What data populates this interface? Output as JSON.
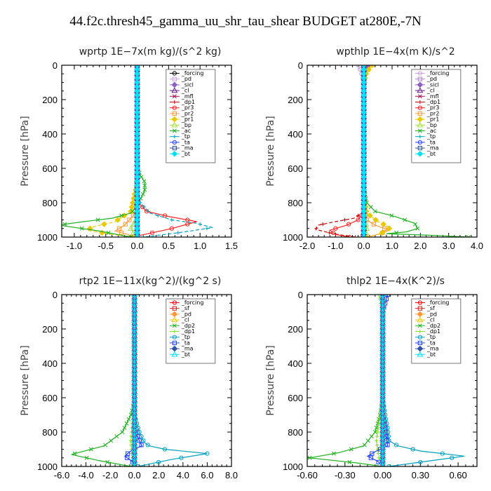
{
  "title": "44.f2c.thresh45_gamma_uu_shr_tau_shear  BUDGET at280E,-7N",
  "chart_data": [
    {
      "type": "line",
      "title": "wprtp   1E−7x(m kg)/(s^2 kg)",
      "ylabel": "Pressure [hPa]",
      "xlim": [
        -1.2,
        1.5
      ],
      "ylim": [
        1000,
        0
      ],
      "xticks": [
        -1.0,
        -0.5,
        0.0,
        0.5,
        1.0,
        1.5
      ],
      "xtick_labels": [
        "-1.0",
        "-0.5",
        "0.0",
        "0.5",
        "1.0",
        "1.5"
      ],
      "yticks": [
        0,
        200,
        400,
        600,
        800,
        1000
      ],
      "ytick_labels": [
        "0",
        "200",
        "400",
        "600",
        "800",
        "1000"
      ],
      "legend_loc": "top-right",
      "series": [
        {
          "name": "_forcing",
          "color": "#000000",
          "x": [
            0,
            0
          ],
          "y": [
            0,
            1000
          ]
        },
        {
          "name": "_pd",
          "color": "#c8a0e0",
          "x": [
            0,
            0
          ],
          "y": [
            0,
            1000
          ]
        },
        {
          "name": "_sicl",
          "color": "#9060c0",
          "x": [
            0,
            0
          ],
          "y": [
            0,
            1000
          ]
        },
        {
          "name": "_cl",
          "color": "#6a1a8a",
          "x": [
            0,
            0
          ],
          "y": [
            0,
            1000
          ]
        },
        {
          "name": "_mfl",
          "color": "#a01050",
          "x": [
            0,
            0
          ],
          "y": [
            0,
            1000
          ]
        },
        {
          "name": "_dp1",
          "color": "#c00000",
          "x": [
            0,
            0
          ],
          "y": [
            0,
            1000
          ]
        },
        {
          "name": "_pr3",
          "color": "#ff2020",
          "x": [
            0,
            0,
            0.02,
            0.15,
            0.5,
            0.95,
            0.55,
            0.05,
            0
          ],
          "y": [
            0,
            750,
            800,
            850,
            880,
            910,
            950,
            990,
            1000
          ]
        },
        {
          "name": "_pr2",
          "color": "#ff9933",
          "x": [
            0,
            0,
            -0.05,
            -0.2,
            -0.35,
            -0.15,
            -0.05
          ],
          "y": [
            0,
            800,
            870,
            930,
            965,
            985,
            1000
          ]
        },
        {
          "name": "_pr1",
          "color": "#e8c800",
          "x": [
            0,
            0,
            -0.01,
            -0.1,
            -0.35,
            -0.7,
            -0.8,
            -0.4,
            -0.05
          ],
          "y": [
            0,
            600,
            700,
            850,
            910,
            940,
            960,
            985,
            1000
          ]
        },
        {
          "name": "_bp",
          "color": "#a0e040",
          "x": [
            0,
            0,
            -0.02,
            -0.1,
            -0.02
          ],
          "y": [
            0,
            800,
            900,
            950,
            1000
          ]
        },
        {
          "name": "_ac",
          "color": "#20b020",
          "x": [
            0,
            0,
            0.05,
            0.12,
            0.12,
            0.05,
            0,
            -0.1,
            -0.4,
            -0.85,
            -1.25,
            -0.6,
            -0.1
          ],
          "y": [
            0,
            580,
            640,
            680,
            730,
            780,
            820,
            860,
            890,
            910,
            930,
            965,
            1000
          ]
        },
        {
          "name": "_tp",
          "color": "#00a0c0",
          "x": [
            0,
            0,
            0.05,
            0.2,
            0.55,
            0.95,
            1.2,
            0.65,
            0.1
          ],
          "y": [
            0,
            720,
            800,
            860,
            900,
            920,
            945,
            975,
            1000
          ]
        },
        {
          "name": "_ta",
          "color": "#2040ff",
          "x": [
            0,
            0
          ],
          "y": [
            0,
            1000
          ]
        },
        {
          "name": "_ma",
          "color": "#3050a0",
          "x": [
            0,
            0
          ],
          "y": [
            0,
            1000
          ]
        },
        {
          "name": "_bt",
          "color": "#00e0ff",
          "x": [
            0,
            0
          ],
          "y": [
            0,
            1000
          ]
        }
      ]
    },
    {
      "type": "line",
      "title": "wpthlp   1E−4x(m K)/s^2",
      "ylabel": "Pressure [hPa]",
      "xlim": [
        -2.0,
        4.0
      ],
      "ylim": [
        1000,
        0
      ],
      "xticks": [
        -2.0,
        -1.0,
        0.0,
        1.0,
        2.0,
        3.0,
        4.0
      ],
      "xtick_labels": [
        "-2.0",
        "-1.0",
        "0.0",
        "1.0",
        "2.0",
        "3.0",
        "4.0"
      ],
      "yticks": [
        0,
        200,
        400,
        600,
        800,
        1000
      ],
      "ytick_labels": [
        "0",
        "200",
        "400",
        "600",
        "800",
        "1000"
      ],
      "legend_loc": "top-right",
      "series": [
        {
          "name": "_forcing",
          "color": "#c8a0e0",
          "x": [
            -0.2,
            -0.1,
            0,
            0
          ],
          "y": [
            0,
            40,
            100,
            1000
          ]
        },
        {
          "name": "_pd",
          "color": "#b080d0",
          "x": [
            0,
            0
          ],
          "y": [
            0,
            1000
          ]
        },
        {
          "name": "_sicl",
          "color": "#9060c0",
          "x": [
            0.15,
            0.05,
            0,
            0
          ],
          "y": [
            0,
            60,
            120,
            1000
          ]
        },
        {
          "name": "_cl",
          "color": "#6a1a8a",
          "x": [
            0,
            0
          ],
          "y": [
            0,
            1000
          ]
        },
        {
          "name": "_mfl",
          "color": "#a01050",
          "x": [
            0,
            0,
            -0.05
          ],
          "y": [
            0,
            900,
            1000
          ]
        },
        {
          "name": "_dp1",
          "color": "#c00000",
          "x": [
            0,
            0,
            -0.05,
            -0.35,
            -1.0,
            -1.6,
            -1.7,
            -1.1,
            -0.3
          ],
          "y": [
            0,
            820,
            860,
            890,
            910,
            930,
            955,
            980,
            1000
          ]
        },
        {
          "name": "_pr3",
          "color": "#ff2020",
          "x": [
            0,
            0,
            -0.2,
            -0.6,
            -1.2,
            -1.0,
            -0.5
          ],
          "y": [
            0,
            850,
            900,
            930,
            960,
            985,
            1000
          ]
        },
        {
          "name": "_pr2",
          "color": "#ff9933",
          "x": [
            0,
            0,
            0.1,
            0.4,
            0.9,
            0.5,
            0.05
          ],
          "y": [
            0,
            850,
            900,
            930,
            960,
            985,
            1000
          ]
        },
        {
          "name": "_pr1",
          "color": "#e8c800",
          "x": [
            0.3,
            0.1,
            0,
            0,
            0.1,
            0.5,
            0.95,
            0.6,
            0.1
          ],
          "y": [
            0,
            40,
            100,
            750,
            860,
            910,
            945,
            980,
            1000
          ]
        },
        {
          "name": "_bp",
          "color": "#a0e040",
          "x": [
            0,
            0,
            0.1,
            0.05
          ],
          "y": [
            0,
            850,
            950,
            1000
          ]
        },
        {
          "name": "_ac",
          "color": "#20b020",
          "x": [
            0,
            0,
            0.1,
            0.4,
            1.1,
            1.8,
            1.9,
            1.5,
            0.8,
            2.5,
            3.7
          ],
          "y": [
            0,
            700,
            800,
            850,
            880,
            920,
            950,
            970,
            980,
            990,
            1000
          ]
        },
        {
          "name": "_tp",
          "color": "#00a0c0",
          "x": [
            0,
            0
          ],
          "y": [
            0,
            1000
          ]
        },
        {
          "name": "_ta",
          "color": "#2040ff",
          "x": [
            0,
            0
          ],
          "y": [
            0,
            1000
          ]
        },
        {
          "name": "_ma",
          "color": "#3050a0",
          "x": [
            0,
            0
          ],
          "y": [
            0,
            1000
          ]
        },
        {
          "name": "_bt",
          "color": "#00e0ff",
          "x": [
            0,
            0
          ],
          "y": [
            0,
            1000
          ]
        }
      ]
    },
    {
      "type": "line",
      "title": "rtp2   1E−11x(kg^2)/(kg^2 s)",
      "ylabel": "Pressure [hPa]",
      "xlim": [
        -6.0,
        8.0
      ],
      "ylim": [
        1000,
        0
      ],
      "xticks": [
        -6.0,
        -4.0,
        -2.0,
        0.0,
        2.0,
        4.0,
        6.0,
        8.0
      ],
      "xtick_labels": [
        "-6.0",
        "-4.0",
        "-2.0",
        "0.0",
        "2.0",
        "4.0",
        "6.0",
        "8.0"
      ],
      "yticks": [
        0,
        200,
        400,
        600,
        800,
        1000
      ],
      "ytick_labels": [
        "0",
        "200",
        "400",
        "600",
        "800",
        "1000"
      ],
      "legend_loc": "top-right",
      "series": [
        {
          "name": "_forcing",
          "color": "#ff0000",
          "x": [
            0,
            0
          ],
          "y": [
            0,
            1000
          ]
        },
        {
          "name": "_sf",
          "color": "#d02020",
          "x": [
            0,
            0
          ],
          "y": [
            0,
            1000
          ]
        },
        {
          "name": "_pd",
          "color": "#ff9933",
          "x": [
            0,
            0
          ],
          "y": [
            0,
            1000
          ]
        },
        {
          "name": "_cl",
          "color": "#e8c800",
          "x": [
            0,
            0
          ],
          "y": [
            0,
            1000
          ]
        },
        {
          "name": "_dp2",
          "color": "#20b020",
          "x": [
            0,
            0,
            -0.3,
            -1.0,
            -2.5,
            -5.2,
            -3.0,
            -0.3
          ],
          "y": [
            0,
            620,
            700,
            800,
            880,
            930,
            965,
            1000
          ]
        },
        {
          "name": "_dp1",
          "color": "#80e020",
          "x": [
            0,
            0,
            -0.2,
            -0.3,
            -0.2,
            0
          ],
          "y": [
            0,
            650,
            750,
            850,
            950,
            1000
          ]
        },
        {
          "name": "_tp",
          "color": "#00a0c0",
          "x": [
            0,
            0,
            0.4,
            0.8,
            1.2,
            2.5,
            6.0,
            3.0,
            0.3
          ],
          "y": [
            0,
            700,
            800,
            860,
            880,
            900,
            925,
            960,
            1000
          ]
        },
        {
          "name": "_ta",
          "color": "#2040ff",
          "x": [
            0,
            0,
            0.4,
            0.6,
            -0.3,
            -0.8,
            -0.2,
            0
          ],
          "y": [
            0,
            780,
            850,
            880,
            910,
            940,
            970,
            1000
          ]
        },
        {
          "name": "_ma",
          "color": "#3050a0",
          "x": [
            0,
            0
          ],
          "y": [
            0,
            1000
          ]
        },
        {
          "name": "_bt",
          "color": "#00e0ff",
          "x": [
            0,
            0
          ],
          "y": [
            0,
            1000
          ]
        }
      ]
    },
    {
      "type": "line",
      "title": "thlp2   1E−4x(K^2)/s",
      "ylabel": "Pressure [hPa]",
      "xlim": [
        -0.6,
        0.75
      ],
      "ylim": [
        1000,
        0
      ],
      "xticks": [
        -0.6,
        -0.3,
        0.0,
        0.3,
        0.6
      ],
      "xtick_labels": [
        "-0.60",
        "-0.30",
        "0.00",
        "0.30",
        "0.60"
      ],
      "yticks": [
        0,
        200,
        400,
        600,
        800,
        1000
      ],
      "ytick_labels": [
        "0",
        "200",
        "400",
        "600",
        "800",
        "1000"
      ],
      "legend_loc": "top-right",
      "series": [
        {
          "name": "_forcing",
          "color": "#ff0000",
          "x": [
            0,
            0
          ],
          "y": [
            0,
            1000
          ]
        },
        {
          "name": "_sf",
          "color": "#d02020",
          "x": [
            0,
            0
          ],
          "y": [
            0,
            1000
          ]
        },
        {
          "name": "_pd",
          "color": "#ff9933",
          "x": [
            0,
            0
          ],
          "y": [
            0,
            1000
          ]
        },
        {
          "name": "_cl",
          "color": "#e8c800",
          "x": [
            0,
            0
          ],
          "y": [
            0,
            1000
          ]
        },
        {
          "name": "_dp2",
          "color": "#20b020",
          "x": [
            0,
            0,
            -0.02,
            -0.06,
            -0.15,
            -0.35,
            -0.58,
            -0.2,
            0
          ],
          "y": [
            0,
            600,
            700,
            800,
            880,
            920,
            950,
            980,
            1000
          ]
        },
        {
          "name": "_dp1",
          "color": "#80e020",
          "x": [
            -0.03,
            0,
            0,
            -0.03,
            -0.05,
            -0.03,
            0
          ],
          "y": [
            0,
            100,
            600,
            750,
            850,
            950,
            1000
          ]
        },
        {
          "name": "_tp",
          "color": "#00a0c0",
          "x": [
            0,
            0,
            0.02,
            0.04,
            0.05,
            0.12,
            0.3,
            0.65,
            0.35,
            0.05
          ],
          "y": [
            0,
            600,
            700,
            780,
            850,
            880,
            910,
            940,
            970,
            1000
          ]
        },
        {
          "name": "_ta",
          "color": "#2040ff",
          "x": [
            0.04,
            0,
            0,
            0.02,
            0.04,
            -0.05,
            -0.12,
            -0.04,
            0
          ],
          "y": [
            0,
            100,
            700,
            800,
            880,
            910,
            940,
            970,
            1000
          ]
        },
        {
          "name": "_ma",
          "color": "#3050a0",
          "x": [
            0,
            0
          ],
          "y": [
            0,
            1000
          ]
        },
        {
          "name": "_bt",
          "color": "#00e0ff",
          "x": [
            0,
            0
          ],
          "y": [
            0,
            1000
          ]
        }
      ]
    }
  ]
}
